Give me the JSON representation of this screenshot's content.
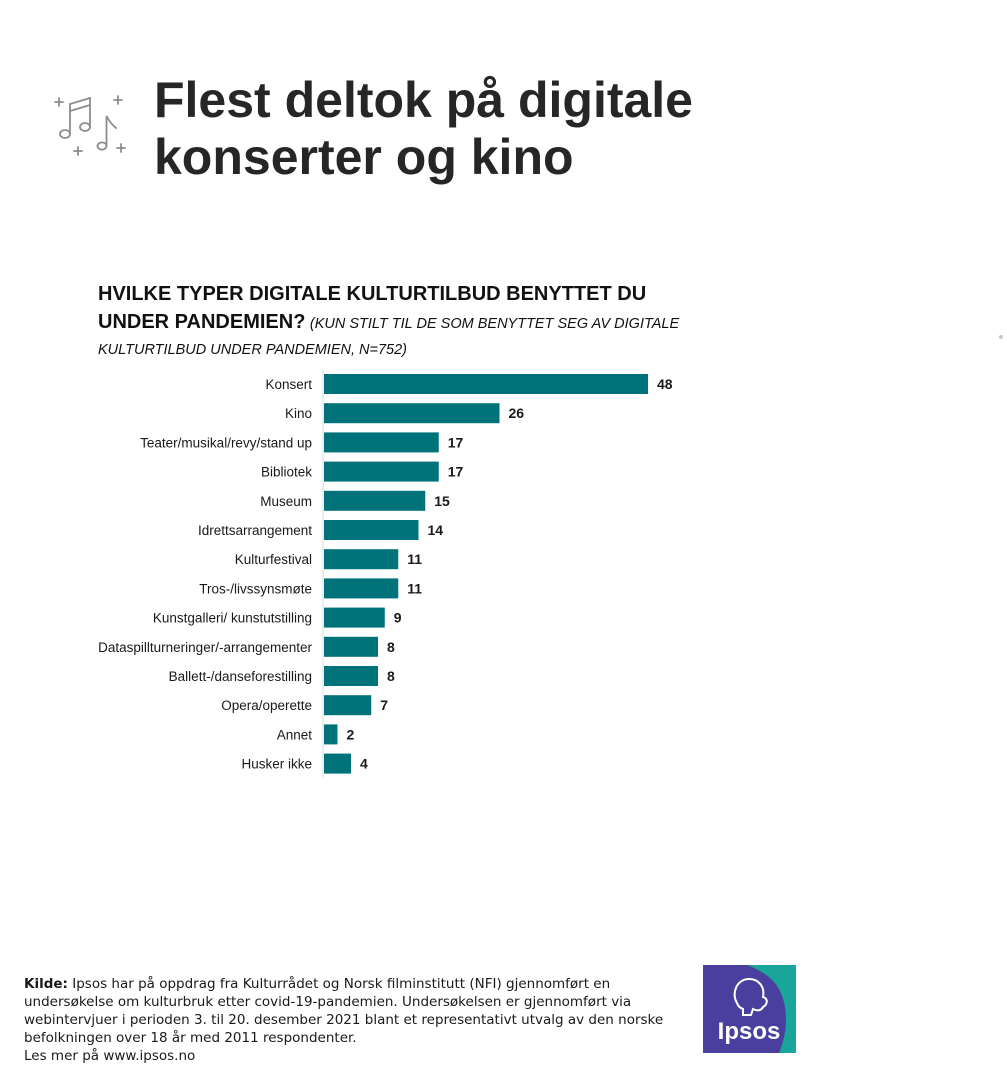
{
  "title": "Flest deltok på digitale konserter og kino",
  "question": {
    "main": "HVILKE TYPER DIGITALE KULTURTILBUD BENYTTET DU UNDER PANDEMIEN?",
    "note": "(KUN STILT TIL DE SOM BENYTTET SEG AV DIGITALE KULTURTILBUD UNDER PANDEMIEN, N=752)"
  },
  "icons": {
    "header": "music-notes-icon"
  },
  "colors": {
    "bar": "#00737a",
    "title": "#262626",
    "logo_blue": "#4a3f9f",
    "logo_teal": "#1aa59b"
  },
  "chart_data": {
    "type": "bar",
    "orientation": "horizontal",
    "categories": [
      "Konsert",
      "Kino",
      "Teater/musikal/revy/stand up",
      "Bibliotek",
      "Museum",
      "Idrettsarrangement",
      "Kulturfestival",
      "Tros-/livssynsmøte",
      "Kunstgalleri/ kunstutstilling",
      "Dataspillturneringer/-arrangementer",
      "Ballett-/danseforestilling",
      "Opera/operette",
      "Annet",
      "Husker ikke"
    ],
    "values": [
      48,
      26,
      17,
      17,
      15,
      14,
      11,
      11,
      9,
      8,
      8,
      7,
      2,
      4
    ],
    "xlim": [
      0,
      50
    ],
    "data_labels": true,
    "grid": false,
    "legend": "none"
  },
  "footer": {
    "kilde_label": "Kilde:",
    "source_text": " Ipsos har på oppdrag fra Kulturrådet og Norsk filminstitutt (NFI) gjennomført en undersøkelse om kulturbruk etter covid-19-pandemien. Undersøkelsen er gjennomført via webintervjuer i perioden 3. til 20. desember 2021 blant et representativt utvalg av den norske befolkningen over 18 år med 2011 respondenter.",
    "more": "Les mer på www.ipsos.no"
  },
  "logo": {
    "text": "Ipsos"
  }
}
